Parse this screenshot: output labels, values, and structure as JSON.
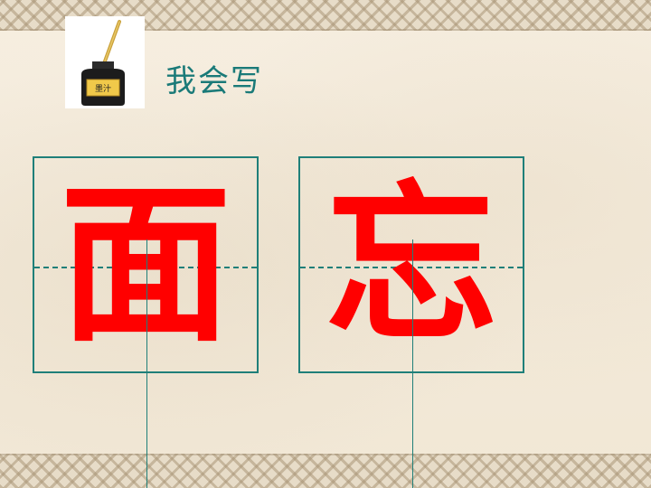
{
  "header": {
    "title": "我会写",
    "ink_label": "墨汁"
  },
  "characters": [
    {
      "char": "面",
      "color": "#ff0000"
    },
    {
      "char": "忘",
      "color": "#ff0000"
    }
  ],
  "colors": {
    "guide": "#1f7f79",
    "title": "#1a7a78",
    "character": "#ff0000"
  },
  "icons": {
    "ink_bottle": "ink-bottle-icon"
  }
}
